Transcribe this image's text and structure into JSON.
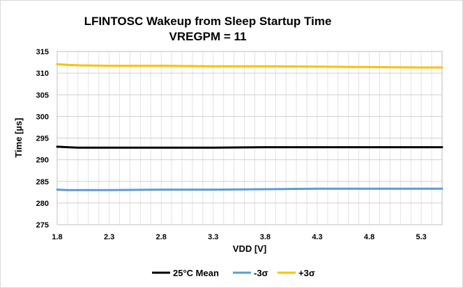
{
  "chart_data": {
    "type": "line",
    "title": [
      "LFINTOSC Wakeup from Sleep Startup Time",
      "VREGPM = 11"
    ],
    "xlabel": "VDD [V]",
    "ylabel": "Time [µs]",
    "xlim": [
      1.8,
      5.5
    ],
    "ylim": [
      275,
      315
    ],
    "x_ticks": [
      "1.8",
      "2.3",
      "2.8",
      "3.3",
      "3.8",
      "4.3",
      "4.8",
      "5.3"
    ],
    "y_ticks": [
      "315",
      "310",
      "305",
      "300",
      "295",
      "290",
      "285",
      "280",
      "275"
    ],
    "grid": true,
    "legend_position": "bottom",
    "x": [
      1.8,
      1.9,
      2.0,
      2.3,
      2.8,
      3.3,
      3.8,
      4.3,
      4.8,
      5.3,
      5.5
    ],
    "series": [
      {
        "name": "25°C Mean",
        "color": "#000000",
        "values": [
          293.0,
          292.9,
          292.8,
          292.8,
          292.8,
          292.8,
          292.9,
          292.9,
          292.9,
          292.9,
          292.9
        ]
      },
      {
        "name": "-3σ",
        "color": "#5b9bd5",
        "values": [
          283.1,
          283.0,
          283.0,
          283.0,
          283.1,
          283.1,
          283.2,
          283.3,
          283.3,
          283.3,
          283.3
        ]
      },
      {
        "name": "+3σ",
        "color": "#ffc000",
        "values": [
          312.1,
          311.9,
          311.8,
          311.7,
          311.7,
          311.6,
          311.6,
          311.5,
          311.4,
          311.3,
          311.3
        ]
      }
    ]
  }
}
